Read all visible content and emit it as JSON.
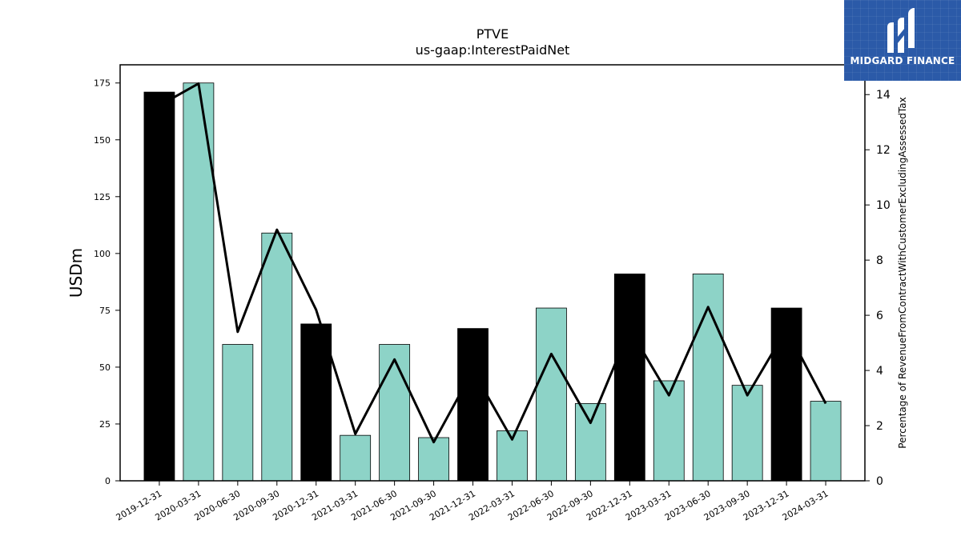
{
  "chart_data": {
    "type": "bar",
    "title": "PTVE",
    "subtitle": "us-gaap:InterestPaidNet",
    "ylabel": "USDm",
    "y2label": "Percentage of RevenueFromContractWithCustomerExcludingAssessedTax",
    "ylim": [
      0,
      183
    ],
    "y2lim": [
      0,
      15.08
    ],
    "yticks": [
      0,
      25,
      50,
      75,
      100,
      125,
      150,
      175
    ],
    "y2ticks": [
      0,
      2,
      4,
      6,
      8,
      10,
      12,
      14
    ],
    "grid": false,
    "categories": [
      "2019-12-31",
      "2020-03-31",
      "2020-06-30",
      "2020-09-30",
      "2020-12-31",
      "2021-03-31",
      "2021-06-30",
      "2021-09-30",
      "2021-12-31",
      "2022-03-31",
      "2022-06-30",
      "2022-09-30",
      "2022-12-31",
      "2023-03-31",
      "2023-06-30",
      "2023-09-30",
      "2023-12-31",
      "2024-03-31"
    ],
    "series": [
      {
        "type": "bar",
        "values": [
          171,
          175,
          60,
          109,
          69,
          20,
          60,
          19,
          67,
          22,
          76,
          34,
          91,
          44,
          91,
          42,
          76,
          35
        ],
        "colors": [
          "#000000",
          "#8dd3c7",
          "#8dd3c7",
          "#8dd3c7",
          "#000000",
          "#8dd3c7",
          "#8dd3c7",
          "#8dd3c7",
          "#000000",
          "#8dd3c7",
          "#8dd3c7",
          "#8dd3c7",
          "#000000",
          "#8dd3c7",
          "#8dd3c7",
          "#8dd3c7",
          "#000000",
          "#8dd3c7"
        ]
      },
      {
        "type": "line",
        "axis": "y2",
        "color": "#000000",
        "values": [
          13.6,
          14.4,
          5.4,
          9.1,
          6.2,
          1.7,
          4.4,
          1.4,
          4.0,
          1.5,
          4.6,
          2.1,
          5.5,
          3.1,
          6.3,
          3.1,
          5.5,
          2.8
        ]
      }
    ]
  },
  "logo": {
    "text": "MIDGARD FINANCE"
  }
}
